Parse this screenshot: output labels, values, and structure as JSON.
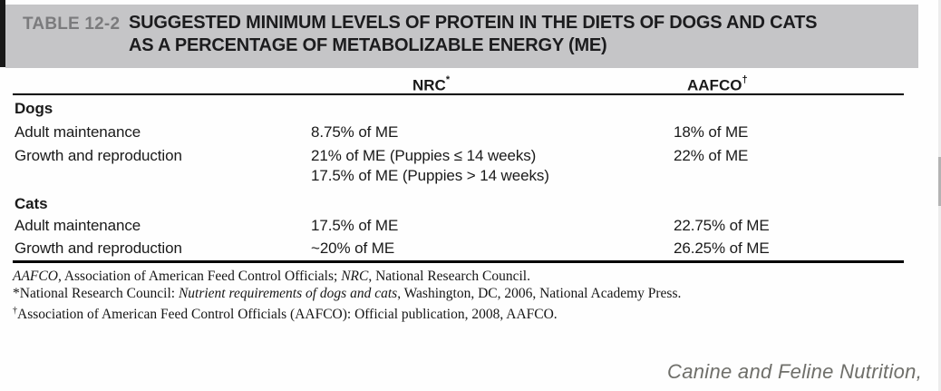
{
  "header": {
    "table_label": "TABLE 12-2",
    "title_line1": "SUGGESTED MINIMUM LEVELS OF PROTEIN IN THE DIETS OF DOGS AND CATS",
    "title_line2": "AS A PERCENTAGE OF METABOLIZABLE ENERGY (ME)"
  },
  "columns": {
    "nrc": {
      "label": "NRC",
      "sup": "*"
    },
    "aafco": {
      "label": "AAFCO",
      "sup": "†"
    }
  },
  "table": {
    "dogs": {
      "section": "Dogs",
      "adult": {
        "label": "Adult maintenance",
        "nrc": "8.75% of ME",
        "aafco": "18% of ME"
      },
      "growth": {
        "label": "Growth and reproduction",
        "nrc_line1": "21% of ME (Puppies ≤ 14 weeks)",
        "nrc_line2": "17.5% of ME (Puppies > 14 weeks)",
        "aafco": "22% of ME"
      }
    },
    "cats": {
      "section": "Cats",
      "adult": {
        "label": "Adult maintenance",
        "nrc": "17.5% of ME",
        "aafco": "22.75% of ME"
      },
      "growth": {
        "label": "Growth and reproduction",
        "nrc": "~20% of ME",
        "aafco": "26.25% of ME"
      }
    }
  },
  "footnotes": {
    "fn1": {
      "seg1": "AAFCO",
      "seg2": ", Association of American Feed Control Officials; ",
      "seg3": "NRC",
      "seg4": ", National Research Council."
    },
    "fn2": {
      "seg1": "*National Research Council: ",
      "seg2": "Nutrient requirements of dogs and cats",
      "seg3": ", Washington, DC, 2006, National Academy Press."
    },
    "fn3": {
      "sup": "†",
      "seg1": "Association of American Feed Control Officials (AAFCO): Official publication, 2008, AAFCO."
    }
  },
  "attribution": "Canine and Feline Nutrition,",
  "colors": {
    "header_band": "#c5c5c7",
    "table_label_gray": "#7b7b7d",
    "body_text": "#1a1a1a",
    "attribution_gray": "#6f6f6a"
  }
}
